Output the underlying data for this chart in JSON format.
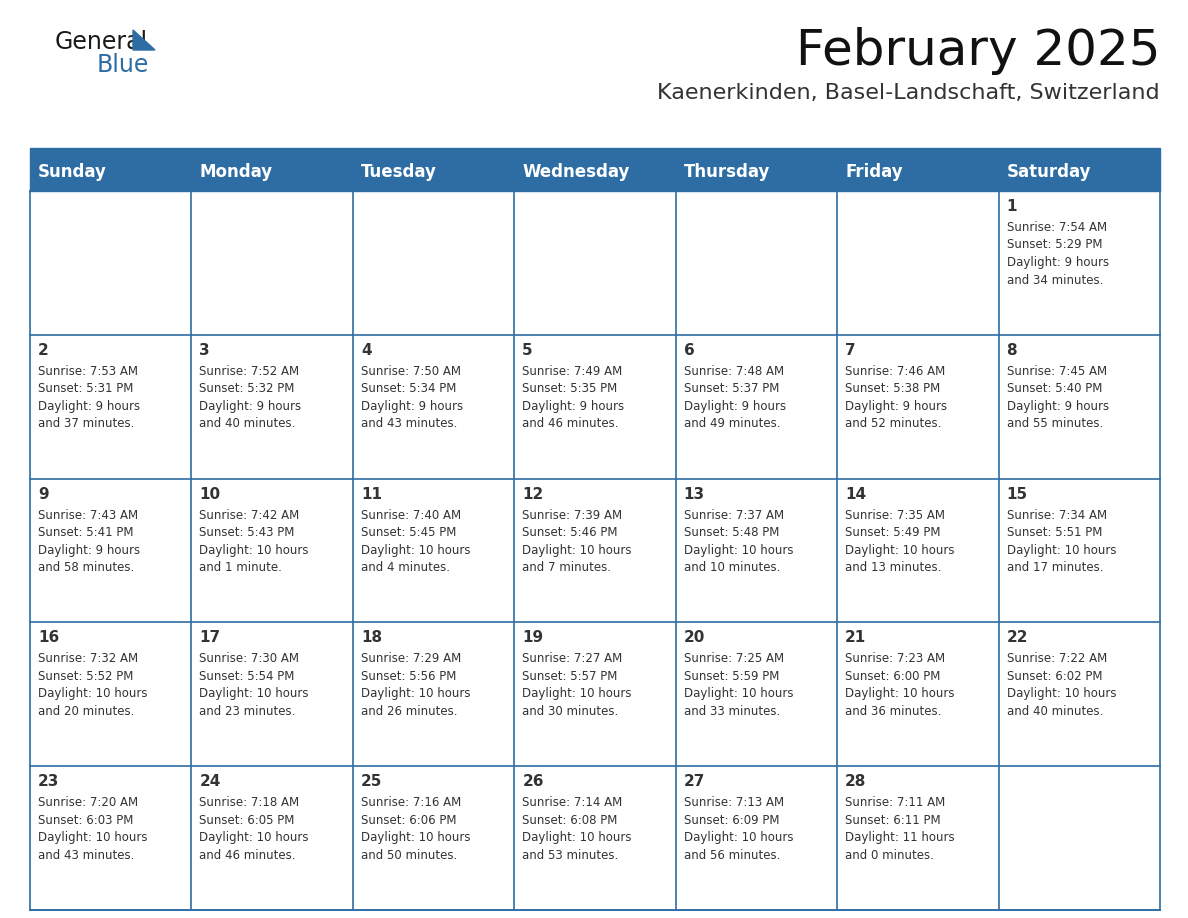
{
  "title": "February 2025",
  "subtitle": "Kaenerkinden, Basel-Landschaft, Switzerland",
  "header_bg": "#2E6DA4",
  "header_text": "#FFFFFF",
  "cell_bg": "#FFFFFF",
  "border_color": "#2E6DA4",
  "text_color": "#333333",
  "days_of_week": [
    "Sunday",
    "Monday",
    "Tuesday",
    "Wednesday",
    "Thursday",
    "Friday",
    "Saturday"
  ],
  "calendar": [
    [
      {
        "day": null,
        "info": null
      },
      {
        "day": null,
        "info": null
      },
      {
        "day": null,
        "info": null
      },
      {
        "day": null,
        "info": null
      },
      {
        "day": null,
        "info": null
      },
      {
        "day": null,
        "info": null
      },
      {
        "day": 1,
        "info": "Sunrise: 7:54 AM\nSunset: 5:29 PM\nDaylight: 9 hours\nand 34 minutes."
      }
    ],
    [
      {
        "day": 2,
        "info": "Sunrise: 7:53 AM\nSunset: 5:31 PM\nDaylight: 9 hours\nand 37 minutes."
      },
      {
        "day": 3,
        "info": "Sunrise: 7:52 AM\nSunset: 5:32 PM\nDaylight: 9 hours\nand 40 minutes."
      },
      {
        "day": 4,
        "info": "Sunrise: 7:50 AM\nSunset: 5:34 PM\nDaylight: 9 hours\nand 43 minutes."
      },
      {
        "day": 5,
        "info": "Sunrise: 7:49 AM\nSunset: 5:35 PM\nDaylight: 9 hours\nand 46 minutes."
      },
      {
        "day": 6,
        "info": "Sunrise: 7:48 AM\nSunset: 5:37 PM\nDaylight: 9 hours\nand 49 minutes."
      },
      {
        "day": 7,
        "info": "Sunrise: 7:46 AM\nSunset: 5:38 PM\nDaylight: 9 hours\nand 52 minutes."
      },
      {
        "day": 8,
        "info": "Sunrise: 7:45 AM\nSunset: 5:40 PM\nDaylight: 9 hours\nand 55 minutes."
      }
    ],
    [
      {
        "day": 9,
        "info": "Sunrise: 7:43 AM\nSunset: 5:41 PM\nDaylight: 9 hours\nand 58 minutes."
      },
      {
        "day": 10,
        "info": "Sunrise: 7:42 AM\nSunset: 5:43 PM\nDaylight: 10 hours\nand 1 minute."
      },
      {
        "day": 11,
        "info": "Sunrise: 7:40 AM\nSunset: 5:45 PM\nDaylight: 10 hours\nand 4 minutes."
      },
      {
        "day": 12,
        "info": "Sunrise: 7:39 AM\nSunset: 5:46 PM\nDaylight: 10 hours\nand 7 minutes."
      },
      {
        "day": 13,
        "info": "Sunrise: 7:37 AM\nSunset: 5:48 PM\nDaylight: 10 hours\nand 10 minutes."
      },
      {
        "day": 14,
        "info": "Sunrise: 7:35 AM\nSunset: 5:49 PM\nDaylight: 10 hours\nand 13 minutes."
      },
      {
        "day": 15,
        "info": "Sunrise: 7:34 AM\nSunset: 5:51 PM\nDaylight: 10 hours\nand 17 minutes."
      }
    ],
    [
      {
        "day": 16,
        "info": "Sunrise: 7:32 AM\nSunset: 5:52 PM\nDaylight: 10 hours\nand 20 minutes."
      },
      {
        "day": 17,
        "info": "Sunrise: 7:30 AM\nSunset: 5:54 PM\nDaylight: 10 hours\nand 23 minutes."
      },
      {
        "day": 18,
        "info": "Sunrise: 7:29 AM\nSunset: 5:56 PM\nDaylight: 10 hours\nand 26 minutes."
      },
      {
        "day": 19,
        "info": "Sunrise: 7:27 AM\nSunset: 5:57 PM\nDaylight: 10 hours\nand 30 minutes."
      },
      {
        "day": 20,
        "info": "Sunrise: 7:25 AM\nSunset: 5:59 PM\nDaylight: 10 hours\nand 33 minutes."
      },
      {
        "day": 21,
        "info": "Sunrise: 7:23 AM\nSunset: 6:00 PM\nDaylight: 10 hours\nand 36 minutes."
      },
      {
        "day": 22,
        "info": "Sunrise: 7:22 AM\nSunset: 6:02 PM\nDaylight: 10 hours\nand 40 minutes."
      }
    ],
    [
      {
        "day": 23,
        "info": "Sunrise: 7:20 AM\nSunset: 6:03 PM\nDaylight: 10 hours\nand 43 minutes."
      },
      {
        "day": 24,
        "info": "Sunrise: 7:18 AM\nSunset: 6:05 PM\nDaylight: 10 hours\nand 46 minutes."
      },
      {
        "day": 25,
        "info": "Sunrise: 7:16 AM\nSunset: 6:06 PM\nDaylight: 10 hours\nand 50 minutes."
      },
      {
        "day": 26,
        "info": "Sunrise: 7:14 AM\nSunset: 6:08 PM\nDaylight: 10 hours\nand 53 minutes."
      },
      {
        "day": 27,
        "info": "Sunrise: 7:13 AM\nSunset: 6:09 PM\nDaylight: 10 hours\nand 56 minutes."
      },
      {
        "day": 28,
        "info": "Sunrise: 7:11 AM\nSunset: 6:11 PM\nDaylight: 11 hours\nand 0 minutes."
      },
      {
        "day": null,
        "info": null
      }
    ]
  ],
  "title_fontsize": 36,
  "subtitle_fontsize": 16,
  "dow_fontsize": 12,
  "day_num_fontsize": 11,
  "info_fontsize": 8.5
}
